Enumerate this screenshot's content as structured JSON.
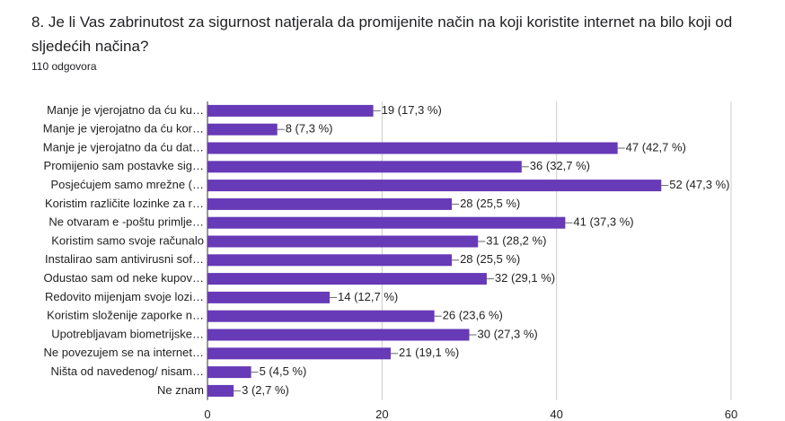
{
  "chart_data": {
    "type": "bar",
    "orientation": "horizontal",
    "title": "8. Je li Vas zabrinutost za sigurnost natjerala da promijenite način na koji koristite internet na bilo koji od sljedećih načina?",
    "subtitle": "110 odgovora",
    "categories": [
      "Manje je vjerojatno da ću ku…",
      "Manje je vjerojatno da ću kor…",
      "Manje je vjerojatno da ću dat…",
      "Promijenio sam postavke sig…",
      "Posjećujem samo mrežne (…",
      "Koristim različite lozinke za r…",
      "Ne otvaram e -poštu primlje…",
      "Koristim samo svoje računalo",
      "Instalirao sam antivirusni sof…",
      "Odustao sam od neke kupov…",
      "Redovito mijenjam svoje lozi…",
      "Koristim složenije zaporke n…",
      "Upotrebljavam biometrijske…",
      "Ne povezujem se na internet…",
      "Ništa od navedenog/ nisam…",
      "Ne znam"
    ],
    "values": [
      19,
      8,
      47,
      36,
      52,
      28,
      41,
      31,
      28,
      32,
      14,
      26,
      30,
      21,
      5,
      3
    ],
    "value_labels": [
      "19 (17,3 %)",
      "8 (7,3 %)",
      "47 (42,7 %)",
      "36 (32,7 %)",
      "52 (47,3 %)",
      "28 (25,5 %)",
      "41 (37,3 %)",
      "31 (28,2 %)",
      "28 (25,5 %)",
      "32 (29,1 %)",
      "14 (12,7 %)",
      "26 (23,6 %)",
      "30 (27,3 %)",
      "21 (19,1 %)",
      "5 (4,5 %)",
      "3 (2,7 %)"
    ],
    "color": "#673ab7",
    "xlim": [
      0,
      60
    ],
    "xticks": [
      0,
      20,
      40,
      60
    ],
    "grid": true
  }
}
